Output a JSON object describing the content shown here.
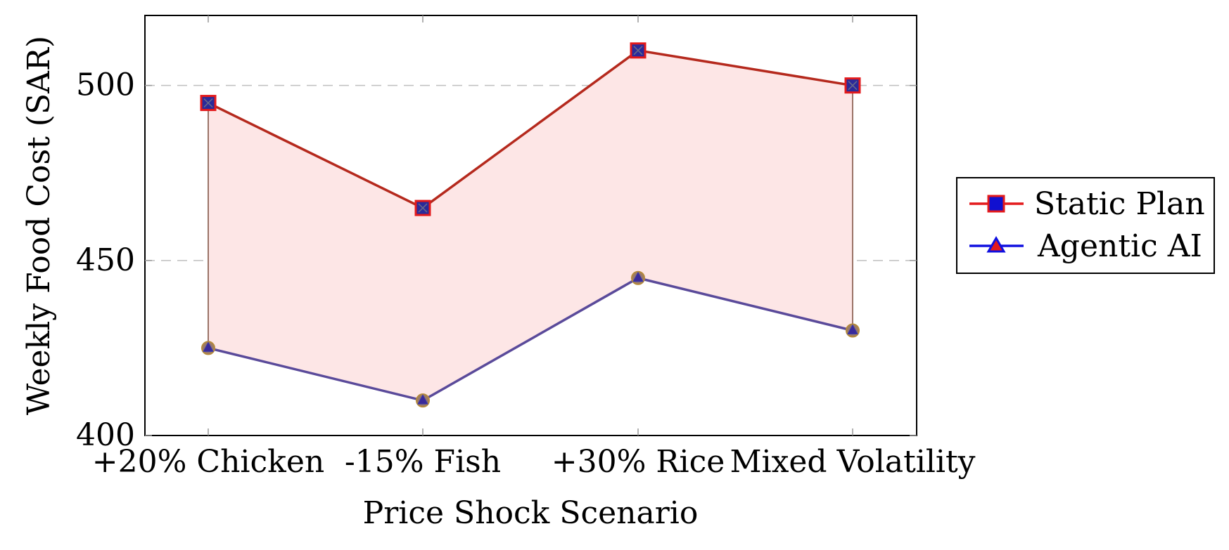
{
  "chart_data": {
    "type": "line",
    "title": "",
    "xlabel": "Price Shock Scenario",
    "ylabel": "Weekly Food Cost (SAR)",
    "categories": [
      "+20% Chicken",
      "-15% Fish",
      "+30% Rice",
      "Mixed Volatility"
    ],
    "ylim": [
      400,
      520
    ],
    "yticks": [
      400,
      450,
      500
    ],
    "grid": "horizontal-dashed",
    "legend_position": "outside-right",
    "shaded_region": {
      "between": [
        "Static Plan",
        "Agentic AI"
      ],
      "color": "#fde6e6"
    },
    "series": [
      {
        "name": "Static Plan",
        "values": [
          495,
          465,
          510,
          500
        ],
        "color": "#e31a1c",
        "marker": "square",
        "marker_fill": "#1010d0"
      },
      {
        "name": "Agentic AI",
        "values": [
          425,
          410,
          445,
          430
        ],
        "color": "#1010e0",
        "marker": "triangle",
        "marker_fill": "#e31a1c"
      }
    ]
  }
}
